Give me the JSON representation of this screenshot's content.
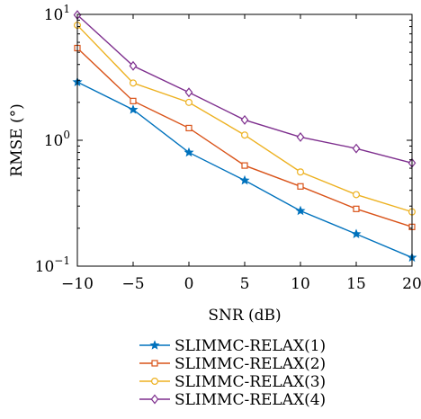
{
  "chart_data": {
    "type": "line",
    "x": [
      -10,
      -5,
      0,
      5,
      10,
      15,
      20
    ],
    "xlabel": "SNR (dB)",
    "ylabel": "RMSE (°)",
    "xlim": [
      -10,
      20
    ],
    "ylim": [
      0.1,
      10
    ],
    "yscale": "log",
    "xticks": [
      -10,
      -5,
      0,
      5,
      10,
      15,
      20
    ],
    "xtick_labels": [
      "−10",
      "−5",
      "0",
      "5",
      "10",
      "15",
      "20"
    ],
    "yticks": [
      {
        "value": 10,
        "base": "10",
        "exp": "1"
      },
      {
        "value": 1,
        "base": "10",
        "exp": "0"
      },
      {
        "value": 0.1,
        "base": "10",
        "exp": "−1"
      }
    ],
    "grid": false,
    "legend_position": "below",
    "series": [
      {
        "name": "SLIMMC-RELAX(1)",
        "color": "#0072BD",
        "marker": "star",
        "values": [
          2.9,
          1.75,
          0.8,
          0.48,
          0.275,
          0.18,
          0.117
        ]
      },
      {
        "name": "SLIMMC-RELAX(2)",
        "color": "#D95319",
        "marker": "square",
        "values": [
          5.4,
          2.05,
          1.25,
          0.63,
          0.43,
          0.285,
          0.205
        ]
      },
      {
        "name": "SLIMMC-RELAX(3)",
        "color": "#EDB120",
        "marker": "circle",
        "values": [
          8.2,
          2.85,
          2.0,
          1.1,
          0.56,
          0.37,
          0.27
        ]
      },
      {
        "name": "SLIMMC-RELAX(4)",
        "color": "#7E2F8E",
        "marker": "diamond",
        "values": [
          9.9,
          3.9,
          2.4,
          1.45,
          1.06,
          0.86,
          0.66
        ]
      }
    ]
  }
}
